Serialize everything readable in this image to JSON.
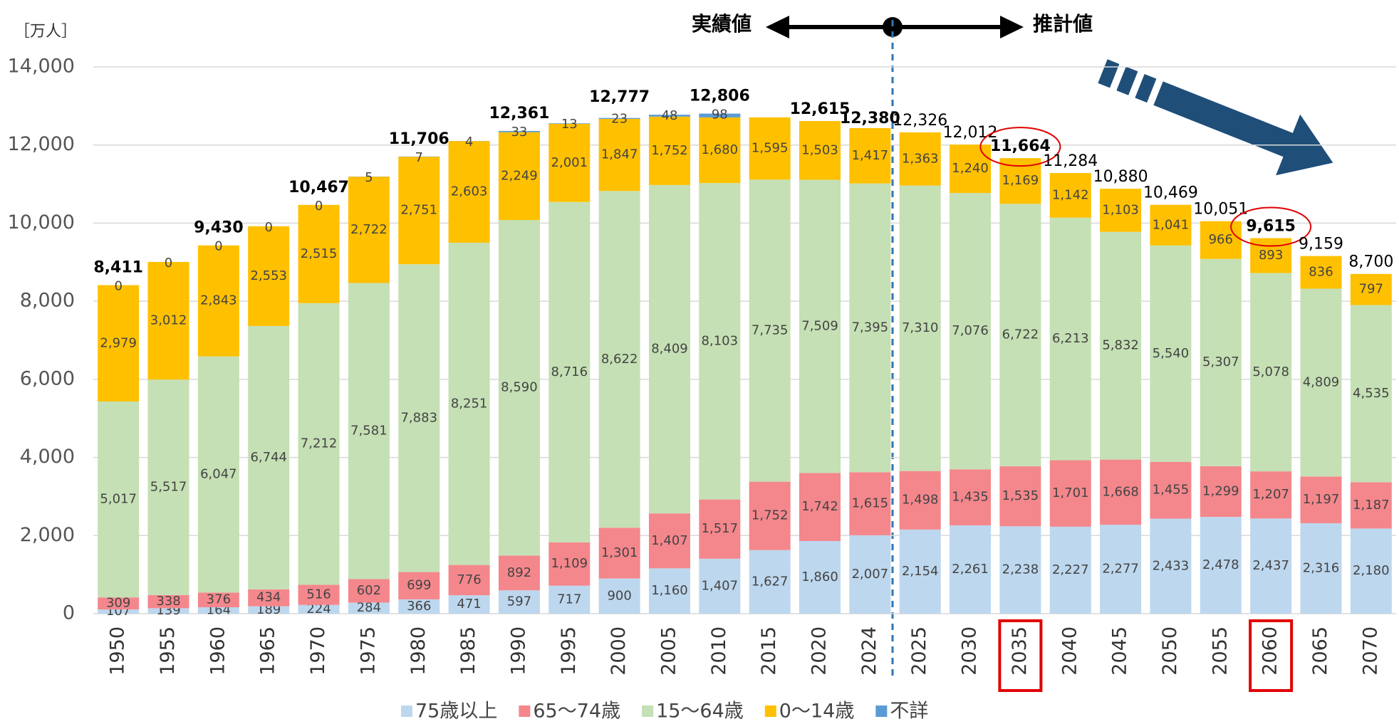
{
  "chart_data": {
    "type": "stacked_bar",
    "unit_label": "［万人］",
    "annotations": {
      "actual": "実績値",
      "projection": "推計値"
    },
    "categories": [
      "1950",
      "1955",
      "1960",
      "1965",
      "1970",
      "1975",
      "1980",
      "1985",
      "1990",
      "1995",
      "2000",
      "2005",
      "2010",
      "2015",
      "2020",
      "2024",
      "2025",
      "2030",
      "2035",
      "2040",
      "2045",
      "2050",
      "2055",
      "2060",
      "2065",
      "2070"
    ],
    "ylim": [
      0,
      14000
    ],
    "yticks": [
      0,
      {
        "value": 2000,
        "label": "2,000"
      },
      {
        "value": 4000,
        "label": "4,000"
      },
      {
        "value": 6000,
        "label": "6,000"
      },
      {
        "value": 8000,
        "label": "8,000"
      },
      {
        "value": 10000,
        "label": "10,000"
      },
      {
        "value": 12000,
        "label": "12,000"
      },
      {
        "value": 14000,
        "label": "14,000"
      }
    ],
    "grid": true,
    "series": [
      {
        "name": "75歳以上",
        "color": "#bdd7ee",
        "values": [
          107,
          139,
          164,
          189,
          224,
          284,
          366,
          471,
          597,
          717,
          900,
          1160,
          1407,
          1627,
          1860,
          2007,
          2154,
          2261,
          2238,
          2227,
          2277,
          2433,
          2478,
          2437,
          2316,
          2180
        ],
        "value_labels": [
          "107",
          "139",
          "164",
          "189",
          "224",
          "284",
          "366",
          "471",
          "597",
          "717",
          "900",
          "1,160",
          "1,407",
          "1,627",
          "1,860",
          "2,007",
          "2,154",
          "2,261",
          "2,238",
          "2,227",
          "2,277",
          "2,433",
          "2,478",
          "2,437",
          "2,316",
          "2,180"
        ]
      },
      {
        "name": "65〜74歳",
        "color": "#f4878c",
        "values": [
          309,
          338,
          376,
          434,
          516,
          602,
          699,
          776,
          892,
          1109,
          1301,
          1407,
          1517,
          1752,
          1742,
          1615,
          1498,
          1435,
          1535,
          1701,
          1668,
          1455,
          1299,
          1207,
          1197,
          1187
        ],
        "value_labels": [
          "309",
          "338",
          "376",
          "434",
          "516",
          "602",
          "699",
          "776",
          "892",
          "1,109",
          "1,301",
          "1,407",
          "1,517",
          "1,752",
          "1,742",
          "1,615",
          "1,498",
          "1,435",
          "1,535",
          "1,701",
          "1,668",
          "1,455",
          "1,299",
          "1,207",
          "1,197",
          "1,187"
        ]
      },
      {
        "name": "15〜64歳",
        "color": "#c5e0b4",
        "values": [
          5017,
          5517,
          6047,
          6744,
          7212,
          7581,
          7883,
          8251,
          8590,
          8716,
          8622,
          8409,
          8103,
          7735,
          7509,
          7395,
          7310,
          7076,
          6722,
          6213,
          5832,
          5540,
          5307,
          5078,
          4809,
          4535
        ],
        "value_labels": [
          "5,017",
          "5,517",
          "6,047",
          "6,744",
          "7,212",
          "7,581",
          "7,883",
          "8,251",
          "8,590",
          "8,716",
          "8,622",
          "8,409",
          "8,103",
          "7,735",
          "7,509",
          "7,395",
          "7,310",
          "7,076",
          "6,722",
          "6,213",
          "5,832",
          "5,540",
          "5,307",
          "5,078",
          "4,809",
          "4,535"
        ]
      },
      {
        "name": "0〜14歳",
        "color": "#ffc000",
        "values": [
          2979,
          3012,
          2843,
          2553,
          2515,
          2722,
          2751,
          2603,
          2249,
          2001,
          1847,
          1752,
          1680,
          1595,
          1503,
          1417,
          1363,
          1240,
          1169,
          1142,
          1103,
          1041,
          966,
          893,
          836,
          797
        ],
        "value_labels": [
          "2,979",
          "3,012",
          "2,843",
          "2,553",
          "2,515",
          "2,722",
          "2,751",
          "2,603",
          "2,249",
          "2,001",
          "1,847",
          "1,752",
          "1,680",
          "1,595",
          "1,503",
          "1,417",
          "1,363",
          "1,240",
          "1,169",
          "1,142",
          "1,103",
          "1,041",
          "966",
          "893",
          "836",
          "797"
        ]
      },
      {
        "name": "不詳",
        "color": "#5b9bd5",
        "values": [
          0,
          0,
          0,
          0,
          0,
          5,
          7,
          4,
          33,
          13,
          23,
          48,
          98,
          null,
          null,
          null,
          null,
          null,
          null,
          null,
          null,
          null,
          null,
          null,
          null,
          null
        ]
      }
    ],
    "totals": [
      8411,
      null,
      9430,
      null,
      10467,
      null,
      11706,
      null,
      12361,
      null,
      12777,
      null,
      12806,
      null,
      12615,
      12380,
      12326,
      12012,
      11664,
      11284,
      10880,
      10469,
      10051,
      9615,
      9159,
      8700
    ],
    "total_labels": [
      "8,411",
      null,
      "9,430",
      null,
      "10,467",
      null,
      "11,706",
      null,
      "12,361",
      null,
      "12,777",
      null,
      "12,806",
      null,
      "12,615",
      "12,380",
      "12,326",
      "12,012",
      "11,664",
      "11,284",
      "10,880",
      "10,469",
      "10,051",
      "9,615",
      "9,159",
      "8,700"
    ],
    "total_bold": [
      true,
      false,
      true,
      false,
      true,
      false,
      true,
      false,
      true,
      false,
      true,
      false,
      true,
      false,
      true,
      true,
      false,
      false,
      true,
      false,
      false,
      false,
      false,
      true,
      false,
      false
    ],
    "highlight": [
      false,
      false,
      false,
      false,
      false,
      false,
      false,
      false,
      false,
      false,
      false,
      false,
      false,
      false,
      false,
      false,
      false,
      false,
      true,
      false,
      false,
      false,
      false,
      true,
      false,
      false
    ]
  }
}
